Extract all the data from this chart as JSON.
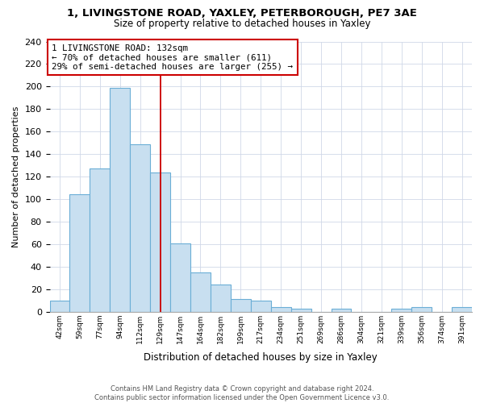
{
  "title1": "1, LIVINGSTONE ROAD, YAXLEY, PETERBOROUGH, PE7 3AE",
  "title2": "Size of property relative to detached houses in Yaxley",
  "xlabel": "Distribution of detached houses by size in Yaxley",
  "ylabel": "Number of detached properties",
  "bin_labels": [
    "42sqm",
    "59sqm",
    "77sqm",
    "94sqm",
    "112sqm",
    "129sqm",
    "147sqm",
    "164sqm",
    "182sqm",
    "199sqm",
    "217sqm",
    "234sqm",
    "251sqm",
    "269sqm",
    "286sqm",
    "304sqm",
    "321sqm",
    "339sqm",
    "356sqm",
    "374sqm",
    "391sqm"
  ],
  "bar_heights": [
    10,
    104,
    127,
    199,
    149,
    124,
    61,
    35,
    24,
    11,
    10,
    4,
    3,
    0,
    3,
    0,
    0,
    3,
    4,
    0,
    4
  ],
  "bar_color": "#c8dff0",
  "bar_edge_color": "#6baed6",
  "property_bar_index": 5,
  "annotation_title": "1 LIVINGSTONE ROAD: 132sqm",
  "annotation_line1": "← 70% of detached houses are smaller (611)",
  "annotation_line2": "29% of semi-detached houses are larger (255) →",
  "vline_color": "#cc0000",
  "annotation_box_color": "#ffffff",
  "annotation_box_edge": "#cc0000",
  "ylim": [
    0,
    240
  ],
  "yticks": [
    0,
    20,
    40,
    60,
    80,
    100,
    120,
    140,
    160,
    180,
    200,
    220,
    240
  ],
  "footer1": "Contains HM Land Registry data © Crown copyright and database right 2024.",
  "footer2": "Contains public sector information licensed under the Open Government Licence v3.0.",
  "grid_color": "#d0d8e8",
  "title1_fontsize": 9.5,
  "title2_fontsize": 8.5
}
